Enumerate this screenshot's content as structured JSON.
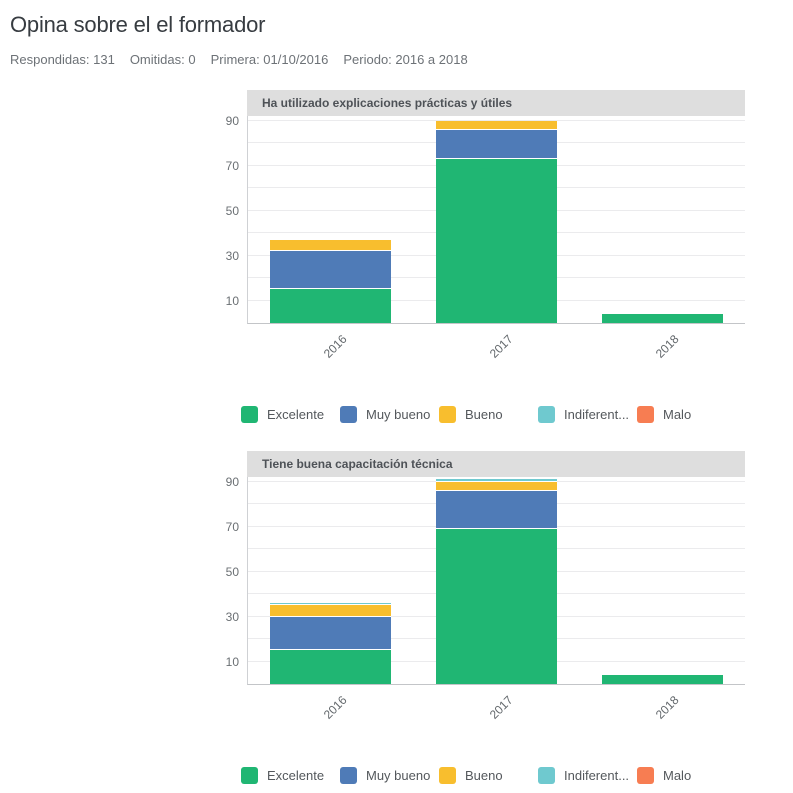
{
  "page": {
    "title": "Opina sobre el el formador",
    "meta": [
      "Respondidas: 131",
      "Omitidas: 0",
      "Primera: 01/10/2016",
      "Periodo: 2016 a 2018"
    ]
  },
  "colors": {
    "excelente": "#20b673",
    "muy_bueno": "#4f7bb7",
    "bueno": "#f8be2e",
    "indiferente": "#6fc9cf",
    "malo": "#f77d52",
    "header_bar": "#dedede",
    "gridline": "#ebebed"
  },
  "chart_data": [
    {
      "type": "bar",
      "stacked": true,
      "title": "Ha utilizado explicaciones prácticas y útiles",
      "categories": [
        "2016",
        "2017",
        "2018"
      ],
      "yticks": [
        10,
        30,
        50,
        70,
        90
      ],
      "grid_step": 10,
      "ylim": [
        0,
        92
      ],
      "grid": true,
      "legend_position": "bottom",
      "series": [
        {
          "name": "Excelente",
          "color": "#20b673",
          "values": [
            15,
            73,
            4
          ]
        },
        {
          "name": "Muy bueno",
          "color": "#4f7bb7",
          "values": [
            17,
            13,
            0
          ]
        },
        {
          "name": "Bueno",
          "color": "#f8be2e",
          "values": [
            5,
            4,
            0
          ]
        },
        {
          "name": "Indiferent...",
          "color": "#6fc9cf",
          "values": [
            0,
            0,
            0
          ]
        },
        {
          "name": "Malo",
          "color": "#f77d52",
          "values": [
            0,
            0,
            0
          ]
        }
      ]
    },
    {
      "type": "bar",
      "stacked": true,
      "title": "Tiene buena capacitación técnica",
      "categories": [
        "2016",
        "2017",
        "2018"
      ],
      "yticks": [
        10,
        30,
        50,
        70,
        90
      ],
      "grid_step": 10,
      "ylim": [
        0,
        92
      ],
      "grid": true,
      "legend_position": "bottom",
      "series": [
        {
          "name": "Excelente",
          "color": "#20b673",
          "values": [
            15,
            69,
            4
          ]
        },
        {
          "name": "Muy bueno",
          "color": "#4f7bb7",
          "values": [
            15,
            17,
            0
          ]
        },
        {
          "name": "Bueno",
          "color": "#f8be2e",
          "values": [
            5,
            4,
            0
          ]
        },
        {
          "name": "Indiferent...",
          "color": "#6fc9cf",
          "values": [
            1,
            1,
            0
          ]
        },
        {
          "name": "Malo",
          "color": "#f77d52",
          "values": [
            0,
            0,
            0
          ]
        }
      ]
    }
  ]
}
